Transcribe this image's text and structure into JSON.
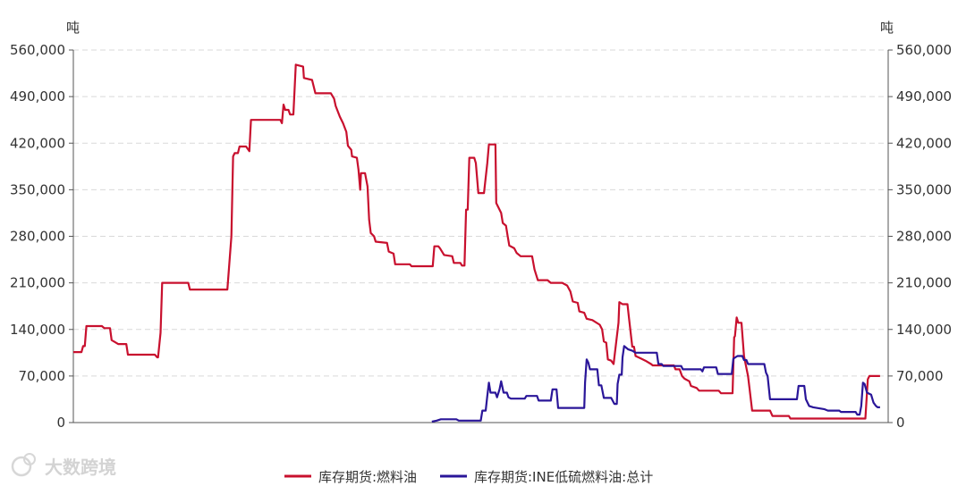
{
  "chart_data": {
    "type": "line",
    "left_unit": "吨",
    "right_unit": "吨",
    "ylim": [
      0,
      560000
    ],
    "yticks": [
      0,
      70000,
      140000,
      210000,
      280000,
      350000,
      420000,
      490000,
      560000
    ],
    "ytick_labels": [
      "0",
      "70,000",
      "140,000",
      "210,000",
      "280,000",
      "350,000",
      "420,000",
      "490,000",
      "560,000"
    ],
    "grid": true,
    "legend_position": "bottom-center",
    "xlim": [
      0,
      1000
    ],
    "series": [
      {
        "name": "库存期货:燃料油",
        "color": "#c8102e",
        "points": [
          [
            0,
            106000
          ],
          [
            10,
            106000
          ],
          [
            12,
            115000
          ],
          [
            14,
            115000
          ],
          [
            16,
            145000
          ],
          [
            35,
            145000
          ],
          [
            38,
            142000
          ],
          [
            45,
            142000
          ],
          [
            47,
            124000
          ],
          [
            55,
            118000
          ],
          [
            65,
            118000
          ],
          [
            67,
            102000
          ],
          [
            100,
            102000
          ],
          [
            103,
            98000
          ],
          [
            104,
            98000
          ],
          [
            107,
            135000
          ],
          [
            109,
            210000
          ],
          [
            141,
            210000
          ],
          [
            143,
            200000
          ],
          [
            189,
            200000
          ],
          [
            194,
            280000
          ],
          [
            196,
            400000
          ],
          [
            198,
            405000
          ],
          [
            202,
            405000
          ],
          [
            204,
            415000
          ],
          [
            212,
            415000
          ],
          [
            216,
            408000
          ],
          [
            218,
            455000
          ],
          [
            254,
            455000
          ],
          [
            256,
            450000
          ],
          [
            258,
            478000
          ],
          [
            260,
            470000
          ],
          [
            264,
            470000
          ],
          [
            266,
            463000
          ],
          [
            270,
            463000
          ],
          [
            273,
            538000
          ],
          [
            282,
            535000
          ],
          [
            283,
            518000
          ],
          [
            293,
            515000
          ],
          [
            297,
            495000
          ],
          [
            316,
            495000
          ],
          [
            320,
            487000
          ],
          [
            322,
            476000
          ],
          [
            327,
            460000
          ],
          [
            331,
            450000
          ],
          [
            335,
            437000
          ],
          [
            337,
            416000
          ],
          [
            341,
            410000
          ],
          [
            342,
            400000
          ],
          [
            348,
            398000
          ],
          [
            350,
            380000
          ],
          [
            352,
            350000
          ],
          [
            353,
            375000
          ],
          [
            358,
            375000
          ],
          [
            361,
            355000
          ],
          [
            363,
            305000
          ],
          [
            365,
            285000
          ],
          [
            369,
            280000
          ],
          [
            371,
            272000
          ],
          [
            385,
            270000
          ],
          [
            387,
            257000
          ],
          [
            393,
            254000
          ],
          [
            395,
            238000
          ],
          [
            413,
            238000
          ],
          [
            415,
            235000
          ],
          [
            441,
            235000
          ],
          [
            443,
            265000
          ],
          [
            448,
            265000
          ],
          [
            450,
            262000
          ],
          [
            455,
            252000
          ],
          [
            465,
            250000
          ],
          [
            467,
            240000
          ],
          [
            475,
            240000
          ],
          [
            477,
            236000
          ],
          [
            480,
            236000
          ],
          [
            482,
            320000
          ],
          [
            484,
            320000
          ],
          [
            486,
            398000
          ],
          [
            492,
            398000
          ],
          [
            494,
            390000
          ],
          [
            497,
            345000
          ],
          [
            504,
            345000
          ],
          [
            508,
            390000
          ],
          [
            510,
            418000
          ],
          [
            518,
            418000
          ],
          [
            519,
            330000
          ],
          [
            525,
            315000
          ],
          [
            527,
            300000
          ],
          [
            531,
            296000
          ],
          [
            533,
            280000
          ],
          [
            535,
            266000
          ],
          [
            541,
            262000
          ],
          [
            544,
            255000
          ],
          [
            549,
            250000
          ],
          [
            563,
            250000
          ],
          [
            566,
            230000
          ],
          [
            570,
            214000
          ],
          [
            582,
            214000
          ],
          [
            586,
            210000
          ],
          [
            600,
            210000
          ],
          [
            606,
            206000
          ],
          [
            610,
            197000
          ],
          [
            613,
            182000
          ],
          [
            619,
            180000
          ],
          [
            621,
            167000
          ],
          [
            627,
            165000
          ],
          [
            630,
            156000
          ],
          [
            637,
            154000
          ],
          [
            646,
            147000
          ],
          [
            649,
            140000
          ],
          [
            651,
            122000
          ],
          [
            654,
            120000
          ],
          [
            656,
            95000
          ],
          [
            660,
            93000
          ],
          [
            663,
            88000
          ],
          [
            669,
            150000
          ],
          [
            670,
            181000
          ],
          [
            674,
            178000
          ],
          [
            680,
            178000
          ],
          [
            682,
            156000
          ],
          [
            686,
            114000
          ],
          [
            688,
            114000
          ],
          [
            690,
            100000
          ],
          [
            697,
            96000
          ],
          [
            702,
            93000
          ],
          [
            709,
            88000
          ],
          [
            711,
            86000
          ],
          [
            737,
            86000
          ],
          [
            739,
            80000
          ],
          [
            744,
            80000
          ],
          [
            747,
            70000
          ],
          [
            750,
            66000
          ],
          [
            756,
            62000
          ],
          [
            758,
            55000
          ],
          [
            765,
            52000
          ],
          [
            768,
            48000
          ],
          [
            792,
            48000
          ],
          [
            795,
            44000
          ],
          [
            797,
            44000
          ],
          [
            809,
            44000
          ],
          [
            811,
            128000
          ],
          [
            812,
            130000
          ],
          [
            814,
            158000
          ],
          [
            816,
            150000
          ],
          [
            820,
            150000
          ],
          [
            823,
            100000
          ],
          [
            828,
            70000
          ],
          [
            830,
            50000
          ],
          [
            833,
            18000
          ],
          [
            855,
            18000
          ],
          [
            858,
            10000
          ],
          [
            878,
            10000
          ],
          [
            880,
            6000
          ],
          [
            972,
            6000
          ],
          [
            975,
            65000
          ],
          [
            977,
            70000
          ],
          [
            990,
            70000
          ]
        ]
      },
      {
        "name": "库存期货:INE低硫燃料油:总计",
        "color": "#2a1699",
        "points": [
          [
            440,
            1500
          ],
          [
            446,
            3000
          ],
          [
            451,
            5000
          ],
          [
            470,
            5000
          ],
          [
            473,
            3000
          ],
          [
            500,
            3000
          ],
          [
            502,
            18000
          ],
          [
            506,
            18000
          ],
          [
            508,
            40000
          ],
          [
            510,
            60000
          ],
          [
            512,
            45000
          ],
          [
            518,
            45000
          ],
          [
            520,
            38000
          ],
          [
            523,
            50000
          ],
          [
            525,
            62000
          ],
          [
            528,
            45000
          ],
          [
            532,
            45000
          ],
          [
            534,
            38000
          ],
          [
            537,
            36000
          ],
          [
            554,
            36000
          ],
          [
            556,
            40000
          ],
          [
            569,
            40000
          ],
          [
            571,
            33000
          ],
          [
            586,
            33000
          ],
          [
            588,
            50000
          ],
          [
            593,
            50000
          ],
          [
            595,
            22000
          ],
          [
            627,
            22000
          ],
          [
            628,
            60000
          ],
          [
            630,
            95000
          ],
          [
            632,
            90000
          ],
          [
            634,
            80000
          ],
          [
            643,
            80000
          ],
          [
            645,
            56000
          ],
          [
            648,
            56000
          ],
          [
            651,
            37000
          ],
          [
            660,
            37000
          ],
          [
            664,
            28000
          ],
          [
            667,
            28000
          ],
          [
            668,
            58000
          ],
          [
            670,
            72000
          ],
          [
            673,
            72000
          ],
          [
            674,
            98000
          ],
          [
            676,
            115000
          ],
          [
            681,
            110000
          ],
          [
            686,
            108000
          ],
          [
            690,
            105000
          ],
          [
            716,
            105000
          ],
          [
            718,
            88000
          ],
          [
            722,
            88000
          ],
          [
            724,
            85000
          ],
          [
            746,
            85000
          ],
          [
            748,
            80000
          ],
          [
            770,
            80000
          ],
          [
            772,
            77000
          ],
          [
            774,
            83000
          ],
          [
            789,
            83000
          ],
          [
            791,
            73000
          ],
          [
            793,
            73000
          ],
          [
            808,
            73000
          ],
          [
            810,
            96000
          ],
          [
            815,
            100000
          ],
          [
            821,
            100000
          ],
          [
            823,
            94000
          ],
          [
            826,
            94000
          ],
          [
            828,
            88000
          ],
          [
            848,
            88000
          ],
          [
            850,
            75000
          ],
          [
            852,
            70000
          ],
          [
            855,
            35000
          ],
          [
            875,
            35000
          ],
          [
            877,
            35000
          ],
          [
            888,
            35000
          ],
          [
            890,
            55000
          ],
          [
            897,
            55000
          ],
          [
            899,
            35000
          ],
          [
            903,
            25000
          ],
          [
            908,
            23000
          ],
          [
            922,
            20000
          ],
          [
            926,
            18000
          ],
          [
            940,
            18000
          ],
          [
            942,
            16000
          ],
          [
            960,
            16000
          ],
          [
            962,
            12000
          ],
          [
            965,
            12000
          ],
          [
            967,
            25000
          ],
          [
            969,
            60000
          ],
          [
            971,
            58000
          ],
          [
            974,
            45000
          ],
          [
            979,
            42000
          ],
          [
            982,
            30000
          ],
          [
            985,
            25000
          ],
          [
            987,
            23000
          ],
          [
            990,
            23000
          ]
        ]
      }
    ]
  },
  "watermark": {
    "text": "大数跨境"
  }
}
